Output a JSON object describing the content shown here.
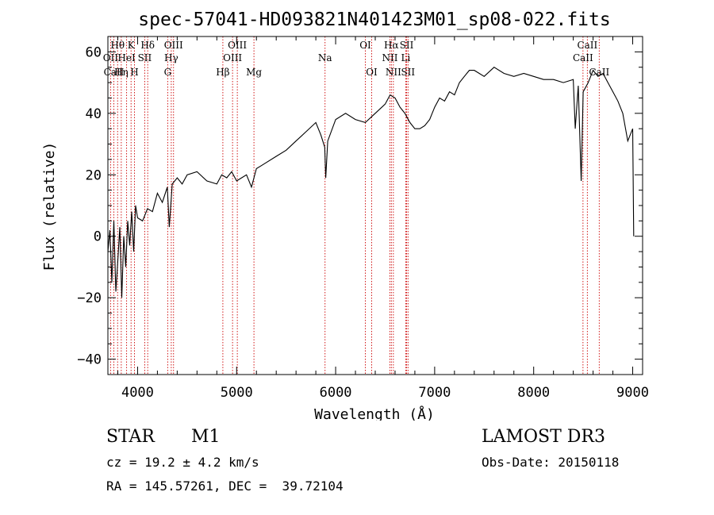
{
  "chart_data": {
    "type": "line",
    "title": "spec-57041-HD093821N401423M01_sp08-022.fits",
    "xlabel": "Wavelength (Å)",
    "ylabel": "Flux (relative)",
    "xlim": [
      3700,
      9100
    ],
    "ylim": [
      -45,
      65
    ],
    "x_ticks": [
      4000,
      5000,
      6000,
      7000,
      8000,
      9000
    ],
    "y_ticks": [
      -40,
      -20,
      0,
      20,
      40,
      60
    ],
    "grid": false,
    "legend": "none",
    "line_color": "#000000",
    "marker_color": "#cc0000",
    "series": [
      {
        "x": [
          3700,
          3720,
          3740,
          3760,
          3780,
          3800,
          3820,
          3840,
          3860,
          3880,
          3900,
          3920,
          3940,
          3960,
          3980,
          4000,
          4050,
          4100,
          4150,
          4200,
          4250,
          4300,
          4320,
          4350,
          4400,
          4450,
          4500,
          4600,
          4700,
          4800,
          4850,
          4900,
          4950,
          5000,
          5050,
          5100,
          5150,
          5200,
          5250,
          5300,
          5400,
          5500,
          5600,
          5700,
          5800,
          5850,
          5890,
          5900,
          5920,
          6000,
          6100,
          6200,
          6300,
          6400,
          6500,
          6550,
          6600,
          6650,
          6700,
          6750,
          6800,
          6850,
          6900,
          6950,
          7000,
          7050,
          7100,
          7150,
          7200,
          7250,
          7300,
          7350,
          7400,
          7500,
          7600,
          7700,
          7800,
          7900,
          8000,
          8100,
          8200,
          8300,
          8400,
          8420,
          8450,
          8480,
          8500,
          8550,
          8600,
          8650,
          8700,
          8750,
          8800,
          8850,
          8900,
          8950,
          9000,
          9010
        ],
        "y": [
          -5,
          2,
          -15,
          5,
          -18,
          -8,
          3,
          -20,
          0,
          -10,
          5,
          -3,
          8,
          -5,
          10,
          6,
          5,
          9,
          8,
          14,
          11,
          16,
          3,
          17,
          19,
          17,
          20,
          21,
          18,
          17,
          20,
          19,
          21,
          18,
          19,
          20,
          16,
          22,
          23,
          24,
          26,
          28,
          31,
          34,
          37,
          33,
          29,
          19,
          31,
          38,
          40,
          38,
          37,
          40,
          43,
          46,
          45,
          42,
          40,
          37,
          35,
          35,
          36,
          38,
          42,
          45,
          44,
          47,
          46,
          50,
          52,
          54,
          54,
          52,
          55,
          53,
          52,
          53,
          52,
          51,
          51,
          50,
          51,
          35,
          49,
          18,
          47,
          50,
          54,
          52,
          53,
          50,
          47,
          44,
          40,
          31,
          35,
          0
        ]
      }
    ],
    "lines": [
      {
        "label": "Hθ",
        "x": 3798,
        "row": 1
      },
      {
        "label": "OII",
        "x": 3727,
        "row": 2
      },
      {
        "label": "CaII",
        "x": 3760,
        "row": 3
      },
      {
        "label": "Hη",
        "x": 3835,
        "row": 3
      },
      {
        "label": "K",
        "x": 3934,
        "row": 1
      },
      {
        "label": "HeI",
        "x": 3889,
        "row": 2
      },
      {
        "label": "SII",
        "x": 4072,
        "row": 2
      },
      {
        "label": "H",
        "x": 3968,
        "row": 3
      },
      {
        "label": "Hδ",
        "x": 4102,
        "row": 1
      },
      {
        "label": "OIII",
        "x": 4363,
        "row": 1
      },
      {
        "label": "Hγ",
        "x": 4340,
        "row": 2
      },
      {
        "label": "G",
        "x": 4304,
        "row": 3
      },
      {
        "label": "Hβ",
        "x": 4861,
        "row": 3
      },
      {
        "label": "OIII",
        "x": 5007,
        "row": 1
      },
      {
        "label": "OIII",
        "x": 4959,
        "row": 2
      },
      {
        "label": "Mg",
        "x": 5175,
        "row": 3
      },
      {
        "label": "Na",
        "x": 5893,
        "row": 2
      },
      {
        "label": "OI",
        "x": 6300,
        "row": 1
      },
      {
        "label": "OI",
        "x": 6364,
        "row": 3
      },
      {
        "label": "Hα",
        "x": 6563,
        "row": 1
      },
      {
        "label": "NII",
        "x": 6548,
        "row": 2
      },
      {
        "label": "NII",
        "x": 6583,
        "row": 3
      },
      {
        "label": "SII",
        "x": 6717,
        "row": 1
      },
      {
        "label": "Li",
        "x": 6708,
        "row": 2
      },
      {
        "label": "SII",
        "x": 6731,
        "row": 3
      },
      {
        "label": "CaII",
        "x": 8542,
        "row": 1
      },
      {
        "label": "CaII",
        "x": 8498,
        "row": 2
      },
      {
        "label": "CaII",
        "x": 8662,
        "row": 3
      }
    ]
  },
  "info": {
    "class": "STAR",
    "subclass": "M1",
    "survey": "LAMOST DR3",
    "cz": "cz = 19.2 ± 4.2 km/s",
    "obs_date": "Obs-Date: 20150118",
    "coords": "RA = 145.57261, DEC =  39.72104"
  }
}
